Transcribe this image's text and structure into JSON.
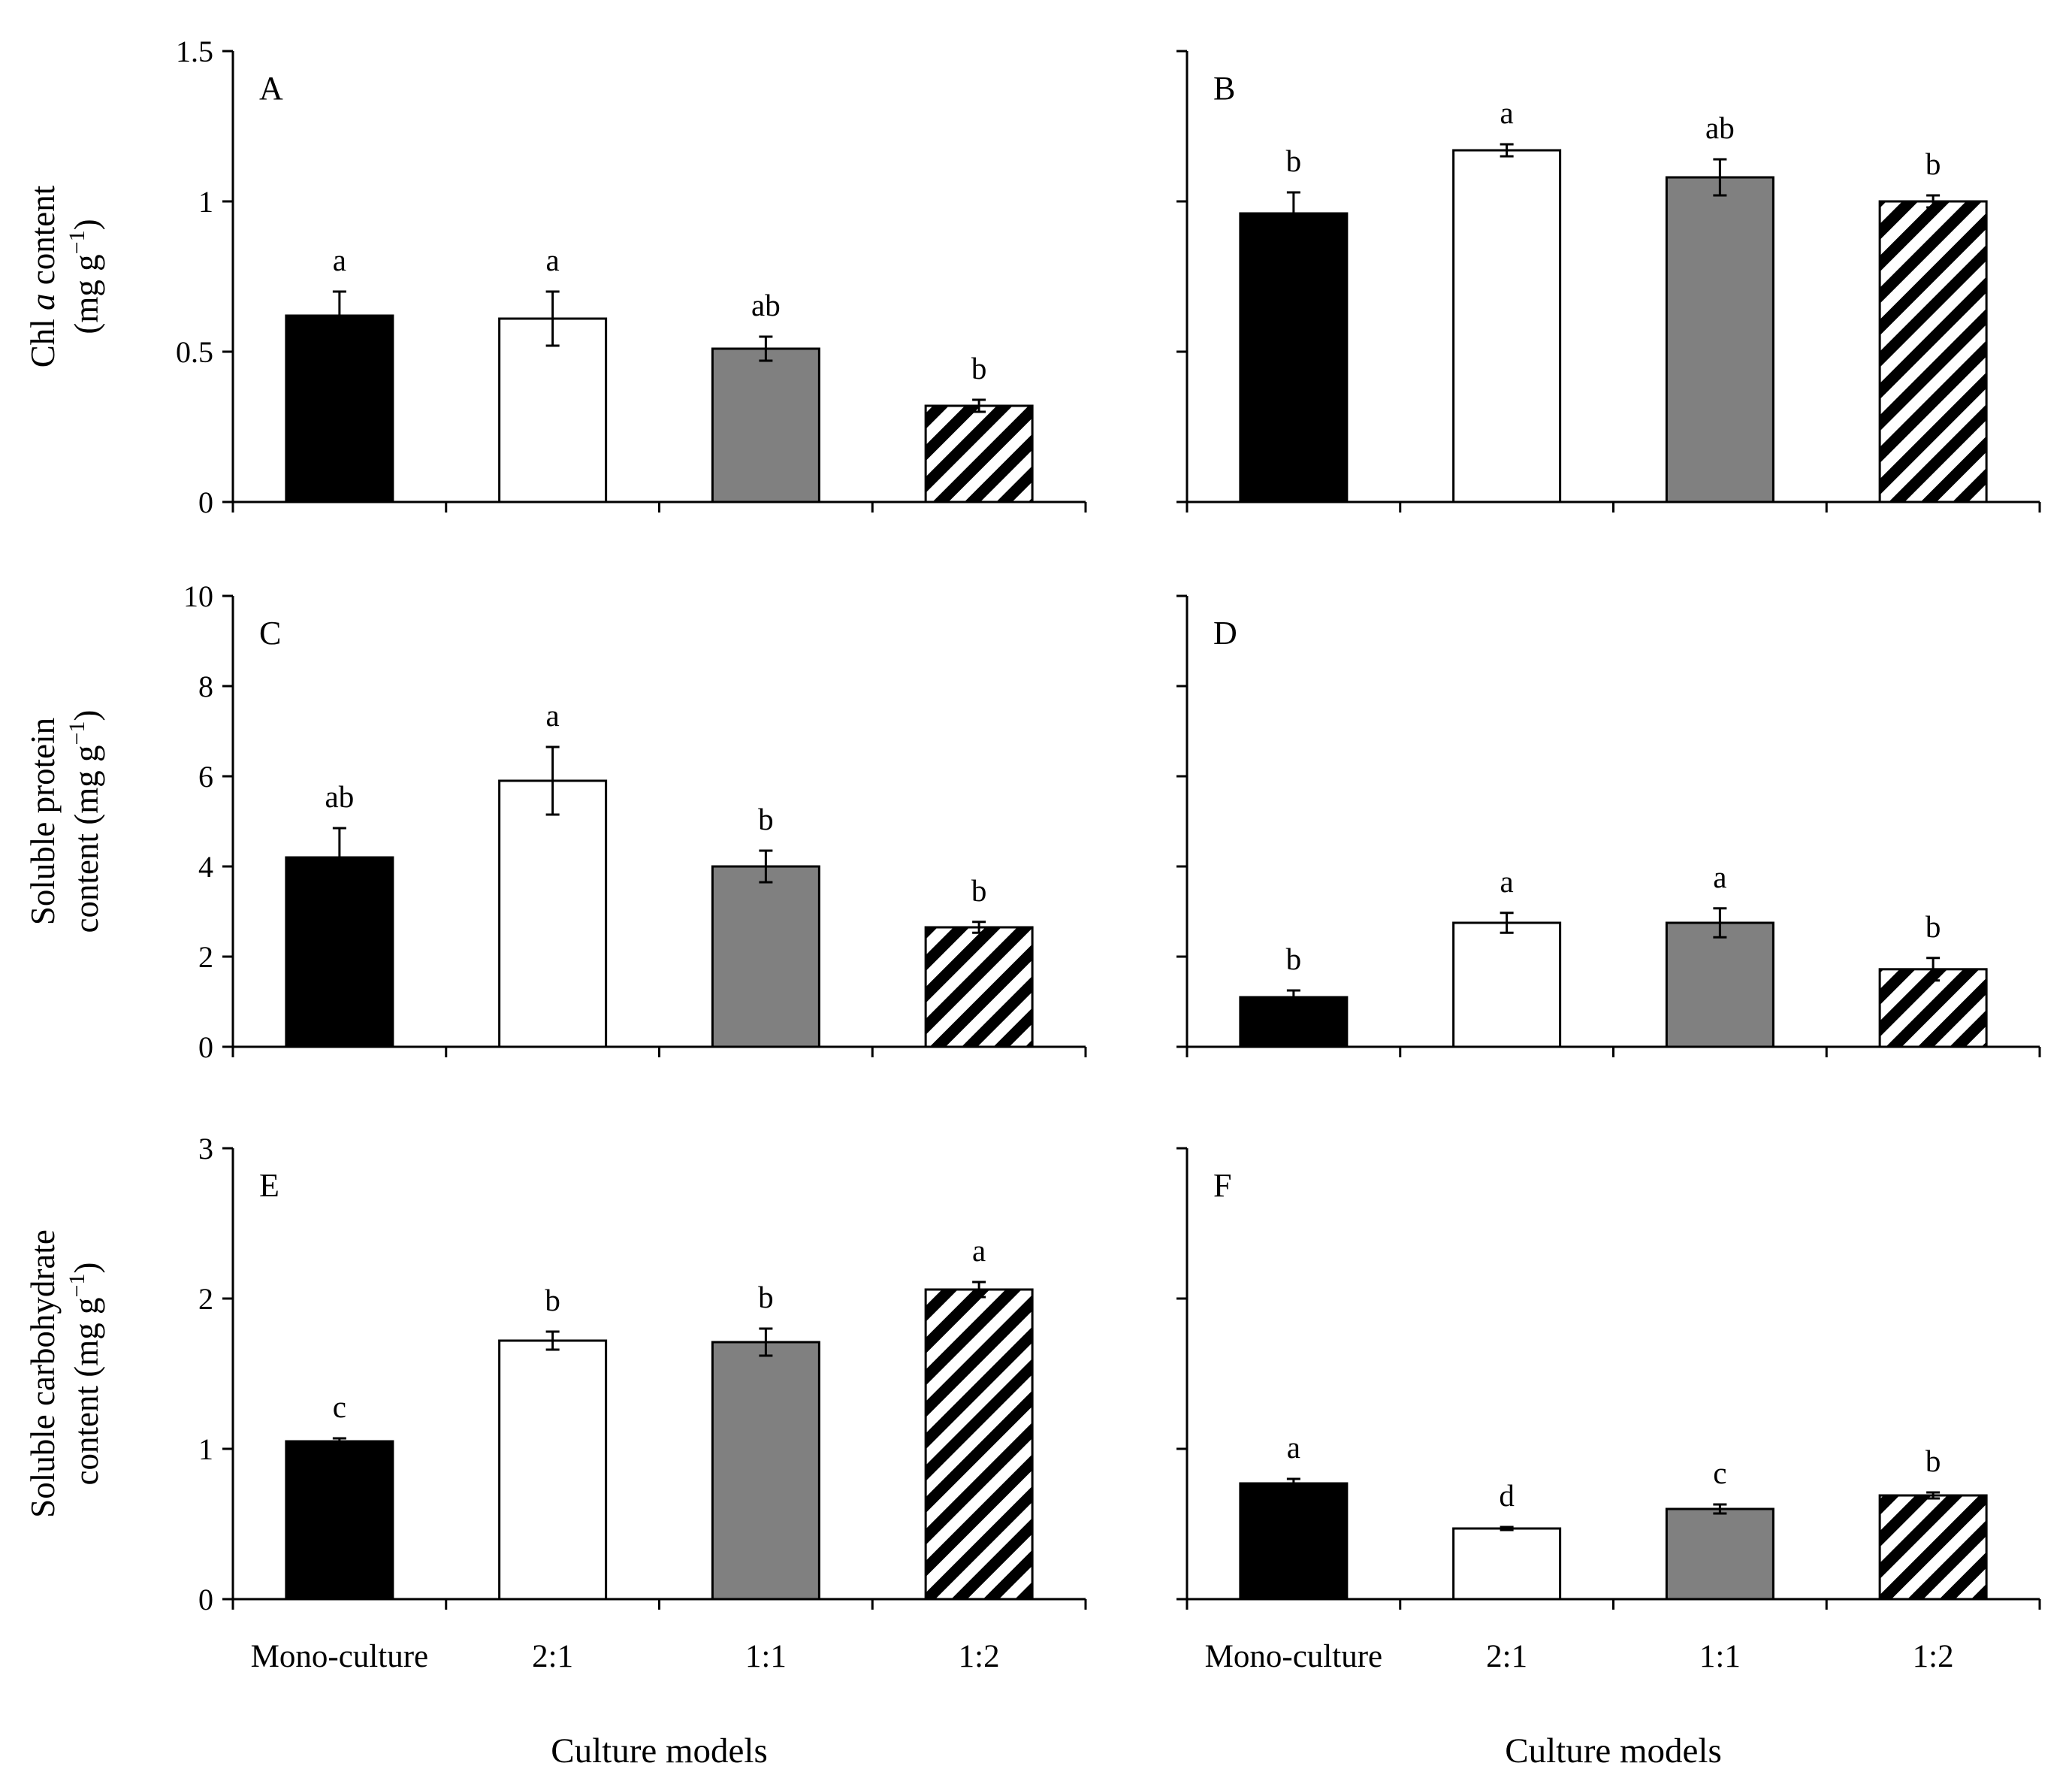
{
  "chart_data": [
    {
      "panel": "A",
      "type": "bar",
      "row": 0,
      "col": 0,
      "categories": [
        "Mono-culture",
        "2:1",
        "1:1",
        "1:2"
      ],
      "values": [
        0.62,
        0.61,
        0.51,
        0.32
      ],
      "errors": [
        0.08,
        0.09,
        0.04,
        0.02
      ],
      "sig": [
        "a",
        "a",
        "ab",
        "b"
      ],
      "ylim": [
        0,
        1.5
      ],
      "yticks": [
        "0",
        "0.5",
        "1",
        "1.5"
      ]
    },
    {
      "panel": "B",
      "type": "bar",
      "row": 0,
      "col": 1,
      "categories": [
        "Mono-culture",
        "2:1",
        "1:1",
        "1:2"
      ],
      "values": [
        0.96,
        1.17,
        1.08,
        1.0
      ],
      "errors": [
        0.07,
        0.02,
        0.06,
        0.02
      ],
      "sig": [
        "b",
        "a",
        "ab",
        "b"
      ],
      "ylim": [
        0,
        1.5
      ],
      "yticks": []
    },
    {
      "panel": "C",
      "type": "bar",
      "row": 1,
      "col": 0,
      "categories": [
        "Mono-culture",
        "2:1",
        "1:1",
        "1:2"
      ],
      "values": [
        4.2,
        5.9,
        4.0,
        2.65
      ],
      "errors": [
        0.65,
        0.75,
        0.35,
        0.12
      ],
      "sig": [
        "ab",
        "a",
        "b",
        "b"
      ],
      "ylim": [
        0,
        10
      ],
      "yticks": [
        "0",
        "2",
        "4",
        "6",
        "8",
        "10"
      ]
    },
    {
      "panel": "D",
      "type": "bar",
      "row": 1,
      "col": 1,
      "categories": [
        "Mono-culture",
        "2:1",
        "1:1",
        "1:2"
      ],
      "values": [
        1.1,
        2.75,
        2.75,
        1.72
      ],
      "errors": [
        0.15,
        0.22,
        0.32,
        0.25
      ],
      "sig": [
        "b",
        "a",
        "a",
        "b"
      ],
      "ylim": [
        0,
        10
      ],
      "yticks": []
    },
    {
      "panel": "E",
      "type": "bar",
      "row": 2,
      "col": 0,
      "categories": [
        "Mono-culture",
        "2:1",
        "1:1",
        "1:2"
      ],
      "values": [
        1.05,
        1.72,
        1.71,
        2.06
      ],
      "errors": [
        0.02,
        0.06,
        0.09,
        0.05
      ],
      "sig": [
        "c",
        "b",
        "b",
        "a"
      ],
      "ylim": [
        0,
        3
      ],
      "yticks": [
        "0",
        "1",
        "2",
        "3"
      ]
    },
    {
      "panel": "F",
      "type": "bar",
      "row": 2,
      "col": 1,
      "categories": [
        "Mono-culture",
        "2:1",
        "1:1",
        "1:2"
      ],
      "values": [
        0.77,
        0.47,
        0.6,
        0.69
      ],
      "errors": [
        0.03,
        0.01,
        0.03,
        0.02
      ],
      "sig": [
        "a",
        "d",
        "c",
        "b"
      ],
      "ylim": [
        0,
        3
      ],
      "yticks": []
    }
  ],
  "ylabels": [
    {
      "line1_before": "Chl ",
      "line1_italic": "a",
      "line1_after": " content",
      "line2_base": "(mg g",
      "line2_sup": "−1",
      "line2_end": ")"
    },
    {
      "line1_before": "Soluble protein",
      "line1_italic": "",
      "line1_after": "",
      "line2_base": "content (mg g",
      "line2_sup": "−1",
      "line2_end": ")"
    },
    {
      "line1_before": "Soluble carbohydrate",
      "line1_italic": "",
      "line1_after": "",
      "line2_base": "content (mg g",
      "line2_sup": "−1",
      "line2_end": ")"
    }
  ],
  "xlabel": "Culture models",
  "colors": {
    "mono": "#000000",
    "ratio_2_1": "#ffffff",
    "ratio_1_1": "#808080",
    "ratio_1_2": "hatch",
    "axis": "#000000"
  }
}
